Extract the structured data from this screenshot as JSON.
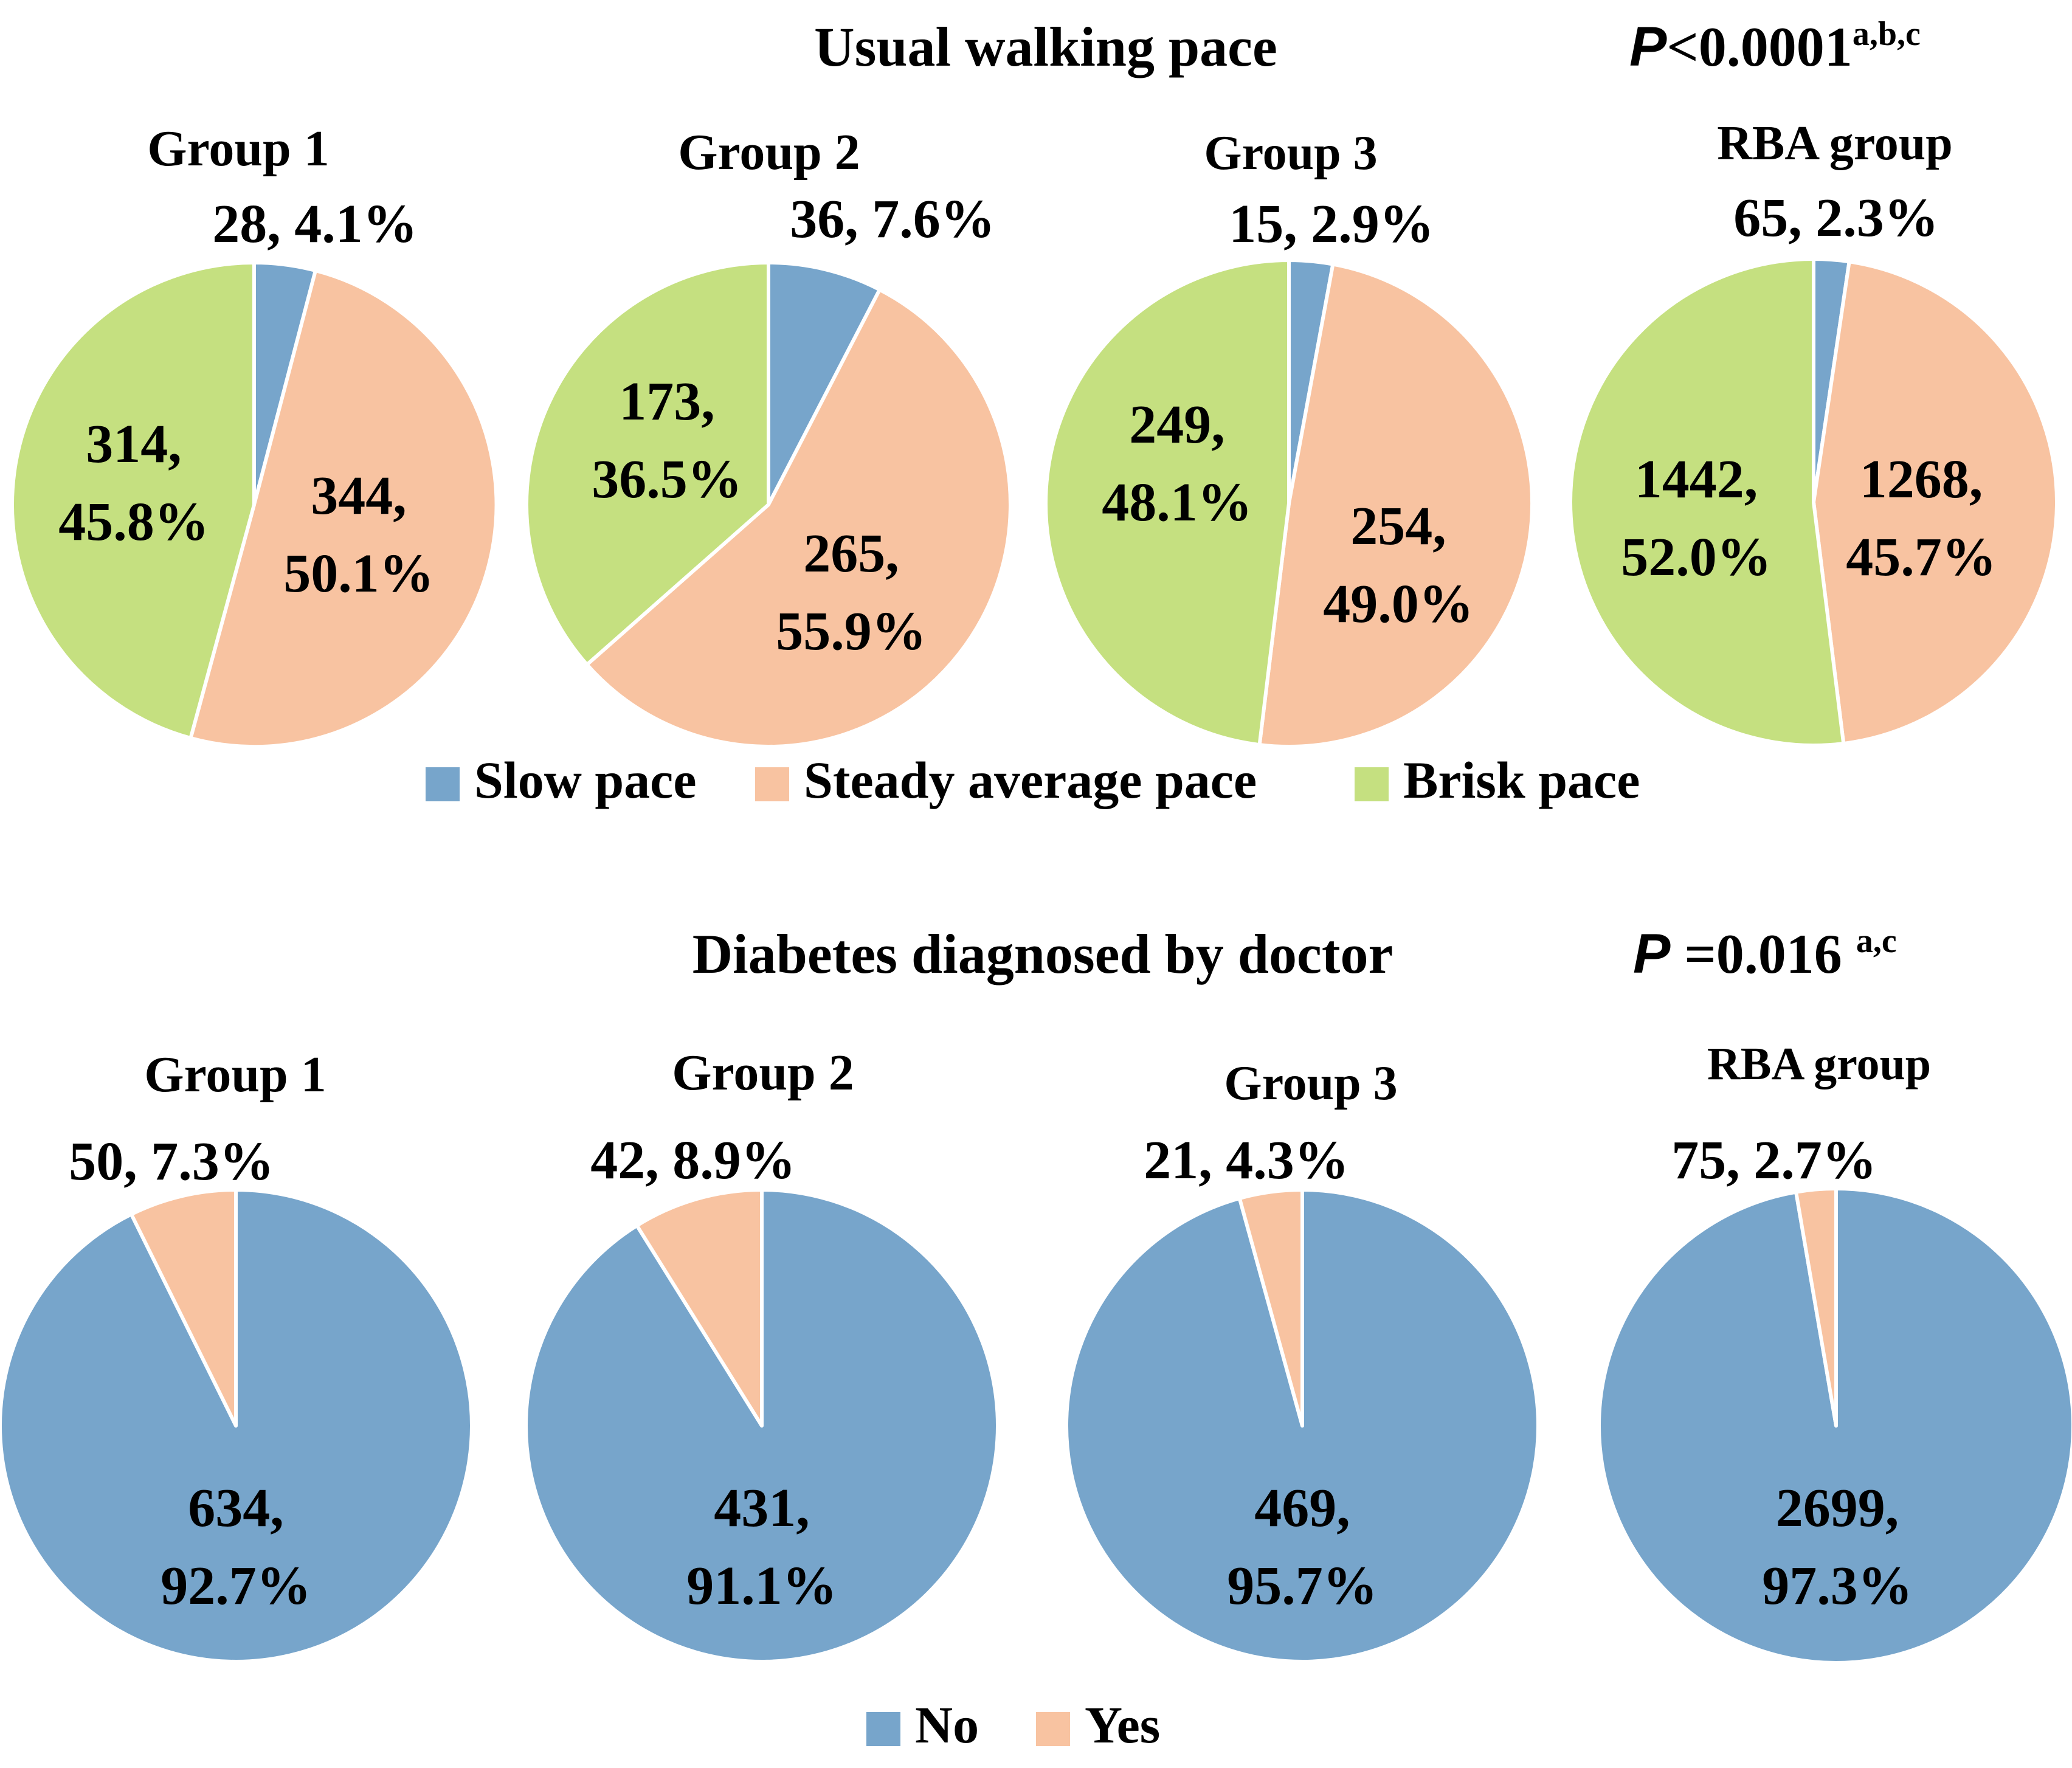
{
  "colors": {
    "slow": "#77A5CB",
    "steady": "#F8C3A1",
    "brisk": "#C5E080",
    "no": "#77A5CB",
    "yes": "#F8C3A1",
    "slice_border": "#ffffff"
  },
  "chart_data": [
    {
      "type": "pie",
      "title": "Usual walking pace",
      "p_value": {
        "p": "P",
        "rest": "<0.0001",
        "sup": "a,b,c"
      },
      "legend": [
        "Slow pace",
        "Steady average pace",
        "Brisk pace"
      ],
      "series_colors": [
        "slow",
        "steady",
        "brisk"
      ],
      "pies": [
        {
          "name": "Group 1",
          "values": [
            28,
            344,
            314
          ],
          "labels": [
            [
              "28, 4.1%"
            ],
            [
              "344,",
              "50.1%"
            ],
            [
              "314,",
              "45.8%"
            ]
          ]
        },
        {
          "name": "Group 2",
          "values": [
            36,
            265,
            173
          ],
          "labels": [
            [
              "36, 7.6%"
            ],
            [
              "265,",
              "55.9%"
            ],
            [
              "173,",
              "36.5%"
            ]
          ]
        },
        {
          "name": "Group 3",
          "values": [
            15,
            254,
            249
          ],
          "labels": [
            [
              "15, 2.9%"
            ],
            [
              "254,",
              "49.0%"
            ],
            [
              "249,",
              "48.1%"
            ]
          ]
        },
        {
          "name": "RBA group",
          "values": [
            65,
            1268,
            1442
          ],
          "labels": [
            [
              "65, 2.3%"
            ],
            [
              "1268,",
              "45.7%"
            ],
            [
              "1442,",
              "52.0%"
            ]
          ]
        }
      ]
    },
    {
      "type": "pie",
      "title": "Diabetes diagnosed by doctor",
      "p_value": {
        "p": "P",
        "rest": " =0.016 ",
        "sup": "a,c"
      },
      "legend": [
        "No",
        "Yes"
      ],
      "series_colors": [
        "no",
        "yes"
      ],
      "pies": [
        {
          "name": "Group 1",
          "values": [
            634,
            50
          ],
          "labels": [
            [
              "634,",
              "92.7%"
            ],
            [
              "50, 7.3%"
            ]
          ]
        },
        {
          "name": "Group 2",
          "values": [
            431,
            42
          ],
          "labels": [
            [
              "431,",
              "91.1%"
            ],
            [
              "42, 8.9%"
            ]
          ]
        },
        {
          "name": "Group 3",
          "values": [
            469,
            21
          ],
          "labels": [
            [
              "469,",
              "95.7%"
            ],
            [
              "21, 4.3%"
            ]
          ]
        },
        {
          "name": "RBA group",
          "values": [
            2699,
            75
          ],
          "labels": [
            [
              "2699,",
              "97.3%"
            ],
            [
              "75, 2.7%"
            ]
          ]
        }
      ]
    }
  ]
}
